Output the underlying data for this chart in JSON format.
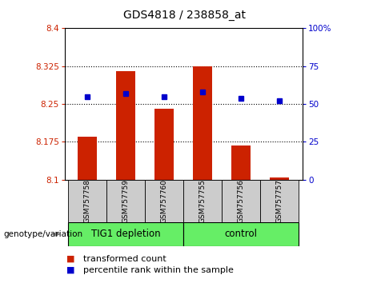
{
  "title": "GDS4818 / 238858_at",
  "samples": [
    "GSM757758",
    "GSM757759",
    "GSM757760",
    "GSM757755",
    "GSM757756",
    "GSM757757"
  ],
  "bar_values": [
    8.185,
    8.315,
    8.24,
    8.325,
    8.168,
    8.105
  ],
  "bar_bottom": 8.1,
  "percentile_values": [
    55,
    57,
    55,
    58,
    54,
    52
  ],
  "ylim_left": [
    8.1,
    8.4
  ],
  "ylim_right": [
    0,
    100
  ],
  "yticks_left": [
    8.1,
    8.175,
    8.25,
    8.325,
    8.4
  ],
  "yticks_right": [
    0,
    25,
    50,
    75,
    100
  ],
  "ytick_labels_left": [
    "8.1",
    "8.175",
    "8.25",
    "8.325",
    "8.4"
  ],
  "ytick_labels_right": [
    "0",
    "25",
    "50",
    "75",
    "100%"
  ],
  "hlines": [
    8.175,
    8.25,
    8.325
  ],
  "group1_label": "TIG1 depletion",
  "group2_label": "control",
  "group1_count": 3,
  "group2_count": 3,
  "genotype_label": "genotype/variation",
  "legend1_label": "transformed count",
  "legend2_label": "percentile rank within the sample",
  "bar_color": "#cc2200",
  "percentile_color": "#0000cc",
  "group_color": "#66ee66",
  "axis_color_left": "#cc2200",
  "axis_color_right": "#0000cc",
  "tick_bg_color": "#cccccc",
  "bar_width": 0.5,
  "title_fontsize": 10,
  "tick_fontsize": 7.5,
  "label_fontsize": 8.5,
  "legend_fontsize": 8
}
